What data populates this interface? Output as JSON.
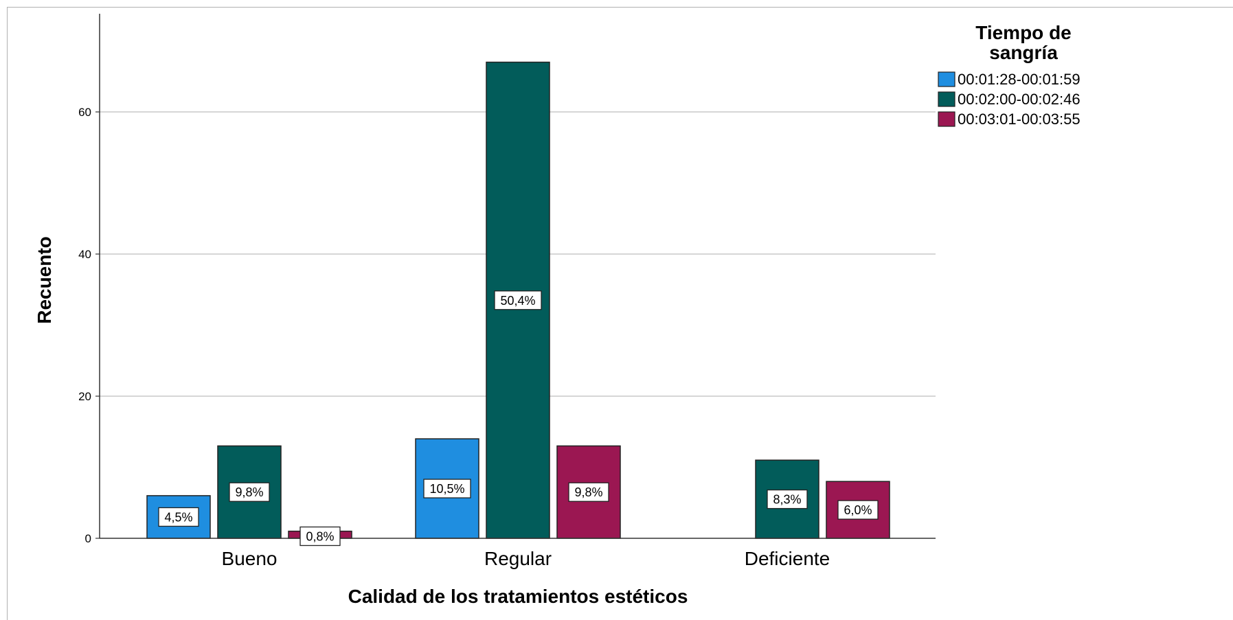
{
  "chart_data": {
    "type": "bar",
    "xlabel": "Calidad de los tratamientos estéticos",
    "ylabel": "Recuento",
    "ylim": [
      0,
      70
    ],
    "yticks": [
      0,
      20,
      40,
      60
    ],
    "grid": true,
    "categories": [
      "Bueno",
      "Regular",
      "Deficiente"
    ],
    "legend": {
      "title_lines": [
        "Tiempo de",
        "sangría"
      ],
      "placement": "top-right"
    },
    "series": [
      {
        "name": "00:01:28-00:01:59",
        "color": "#1f8ee0",
        "values": [
          6,
          14,
          0
        ],
        "labels": [
          "4,5%",
          "10,5%",
          ""
        ]
      },
      {
        "name": "00:02:00-00:02:46",
        "color": "#025c5a",
        "values": [
          13,
          67,
          11
        ],
        "labels": [
          "9,8%",
          "50,4%",
          "8,3%"
        ]
      },
      {
        "name": "00:03:01-00:03:55",
        "color": "#9b1752",
        "values": [
          1,
          13,
          8
        ],
        "labels": [
          "0,8%",
          "9,8%",
          "6,0%"
        ]
      }
    ]
  }
}
